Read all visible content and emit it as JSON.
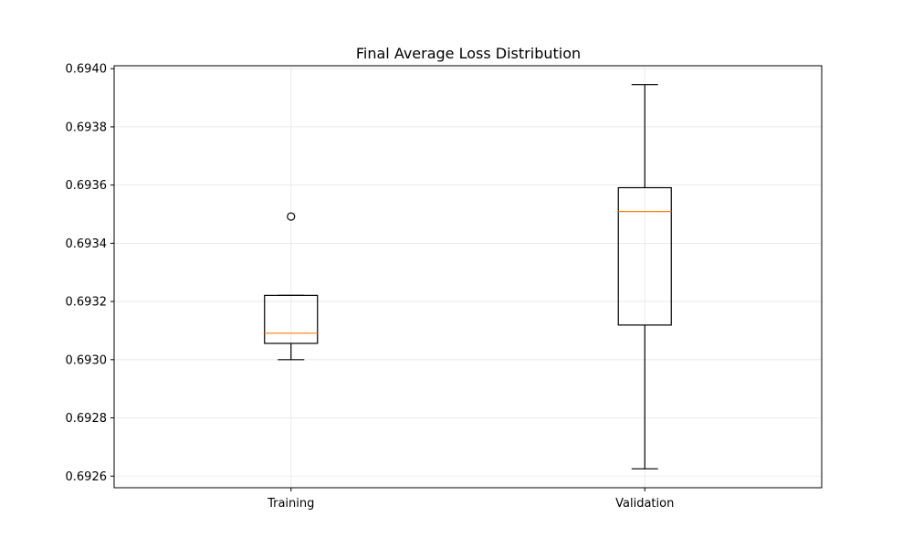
{
  "chart_data": {
    "type": "box",
    "title": "Final Average Loss Distribution",
    "xlabel": "",
    "ylabel": "",
    "categories": [
      "Training",
      "Validation"
    ],
    "ylim": [
      0.69256,
      0.69401
    ],
    "y_ticks": [
      0.6926,
      0.6928,
      0.693,
      0.6932,
      0.6934,
      0.6936,
      0.6938,
      0.694
    ],
    "y_tick_labels": [
      "0.6926",
      "0.6928",
      "0.6930",
      "0.6932",
      "0.6934",
      "0.6936",
      "0.6938",
      "0.6940"
    ],
    "grid": true,
    "boxes": [
      {
        "category": "Training",
        "whisker_low": 0.693,
        "q1": 0.693056,
        "median": 0.693091,
        "q3": 0.693221,
        "whisker_high": 0.693221,
        "outliers": [
          0.693492
        ]
      },
      {
        "category": "Validation",
        "whisker_low": 0.692625,
        "q1": 0.693119,
        "median": 0.693509,
        "q3": 0.693591,
        "whisker_high": 0.693945,
        "outliers": []
      }
    ],
    "colors": {
      "box": "#000000",
      "median": "#ff7f0e",
      "grid": "#e6e6e6",
      "axes": "#000000"
    }
  }
}
